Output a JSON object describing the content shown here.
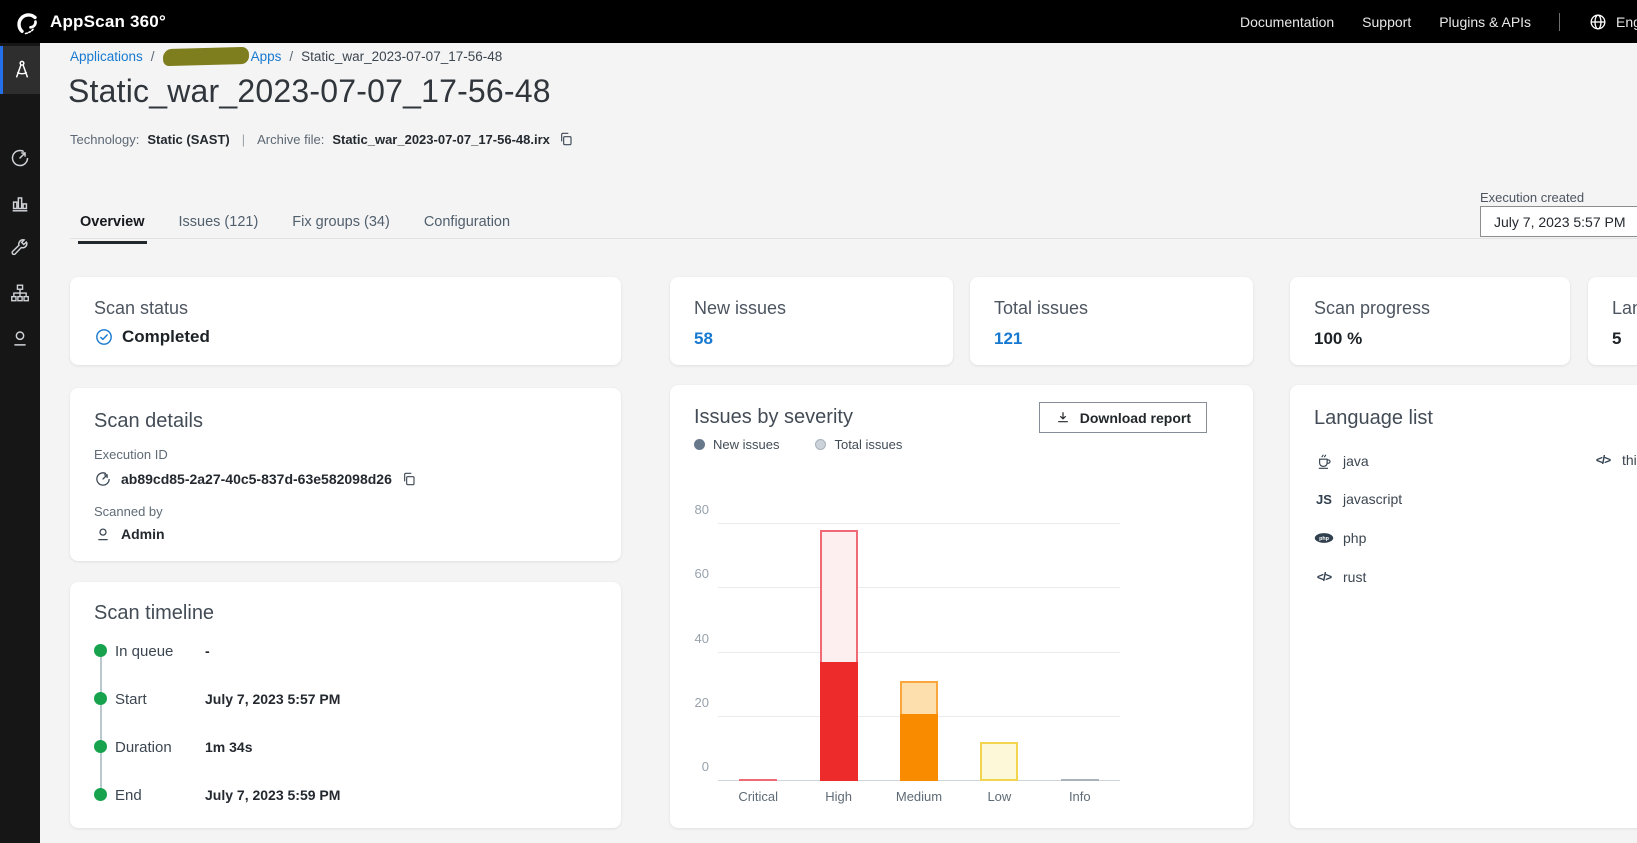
{
  "header": {
    "brand": "AppScan 360°",
    "nav": {
      "documentation": "Documentation",
      "support": "Support",
      "plugins": "Plugins & APIs"
    },
    "language": "English",
    "icons": [
      "appscan-logo-icon",
      "globe-icon"
    ]
  },
  "sidebar": {
    "items": [
      {
        "name": "applications",
        "icon": "compass-icon",
        "active": true
      },
      {
        "name": "scans",
        "icon": "gauge-icon",
        "active": false
      },
      {
        "name": "reports",
        "icon": "bar-chart-icon",
        "active": false
      },
      {
        "name": "tools",
        "icon": "wrench-icon",
        "active": false
      },
      {
        "name": "organization",
        "icon": "sitemap-icon",
        "active": false
      },
      {
        "name": "user",
        "icon": "person-icon",
        "active": false
      }
    ]
  },
  "breadcrumb": {
    "applications": "Applications",
    "separator": "/",
    "apps": "Apps",
    "redacted_segment": true,
    "current": "Static_war_2023-07-07_17-56-48"
  },
  "page": {
    "title": "Static_war_2023-07-07_17-56-48",
    "technology_label": "Technology:",
    "technology_value": "Static (SAST)",
    "divider": "|",
    "archive_label": "Archive file:",
    "archive_value": "Static_war_2023-07-07_17-56-48.irx",
    "copy_icon": "copy-icon"
  },
  "tabs": {
    "items": [
      {
        "label": "Overview",
        "active": true
      },
      {
        "label": "Issues (121)",
        "active": false
      },
      {
        "label": "Fix groups (34)",
        "active": false
      },
      {
        "label": "Configuration",
        "active": false
      }
    ]
  },
  "execution_created": {
    "label": "Execution created",
    "value": "July 7, 2023 5:57 PM"
  },
  "stats": {
    "scan_status": {
      "title": "Scan status",
      "value": "Completed",
      "icon": "check-circle-icon"
    },
    "new_issues": {
      "title": "New issues",
      "value": "58"
    },
    "total_issues": {
      "title": "Total issues",
      "value": "121"
    },
    "scan_progress": {
      "title": "Scan progress",
      "value": "100 %"
    },
    "languages": {
      "title": "Languages",
      "value": "5"
    }
  },
  "scan_details": {
    "title": "Scan details",
    "execution_id_label": "Execution ID",
    "execution_id": "ab89cd85-2a27-40c5-837d-63e582098d26",
    "execution_id_icon": "gauge-icon",
    "copy_icon": "copy-icon",
    "scanned_by_label": "Scanned by",
    "scanned_by": "Admin",
    "scanned_by_icon": "person-icon"
  },
  "scan_timeline": {
    "title": "Scan timeline",
    "rows": [
      {
        "label": "In queue",
        "value": "-"
      },
      {
        "label": "Start",
        "value": "July 7, 2023 5:57 PM"
      },
      {
        "label": "Duration",
        "value": "1m 34s"
      },
      {
        "label": "End",
        "value": "July 7, 2023 5:59 PM"
      }
    ],
    "dot_color": "#17a24e"
  },
  "issues_by_severity": {
    "title": "Issues by severity",
    "download_button": "Download report",
    "download_icon": "download-icon"
  },
  "chart_data": {
    "type": "bar",
    "title": "Issues by severity",
    "categories": [
      "Critical",
      "High",
      "Medium",
      "Low",
      "Info"
    ],
    "series": [
      {
        "name": "New issues",
        "values": [
          0,
          37,
          21,
          0,
          0
        ]
      },
      {
        "name": "Total issues",
        "values": [
          0,
          78,
          31,
          12,
          0
        ]
      }
    ],
    "ylim": [
      0,
      80
    ],
    "yticks": [
      0,
      20,
      40,
      60,
      80
    ],
    "grid": true,
    "legend_position": "top-left",
    "category_colors": {
      "Critical": {
        "solid": "#ee2b2b",
        "fill": "#fdeef0",
        "border": "#ef6a74"
      },
      "High": {
        "solid": "#ee2b2b",
        "fill": "#fdeef0",
        "border": "#ef6a74"
      },
      "Medium": {
        "solid": "#f98b00",
        "fill": "#fddfae",
        "border": "#f9a63c"
      },
      "Low": {
        "solid": "#f5d43c",
        "fill": "#fdf8d8",
        "border": "#f3d44e"
      },
      "Info": {
        "solid": "#aab4bc",
        "fill": "#eef0f2",
        "border": "#aab4bc"
      }
    }
  },
  "language_list": {
    "title": "Language list",
    "items": [
      {
        "label": "java",
        "icon": "java-icon"
      },
      {
        "label": "javascript",
        "icon": "js-icon"
      },
      {
        "label": "php",
        "icon": "php-icon"
      },
      {
        "label": "rust",
        "icon": "code-icon"
      }
    ],
    "second_column": [
      {
        "label": "thirdparty",
        "icon": "code-icon"
      }
    ]
  },
  "colors": {
    "accent_blue": "#1879d0",
    "sidebar_active_border": "#2570ea",
    "timeline_green": "#17a24e",
    "page_background": "#f4f4f4",
    "topbar_background": "#000000"
  }
}
